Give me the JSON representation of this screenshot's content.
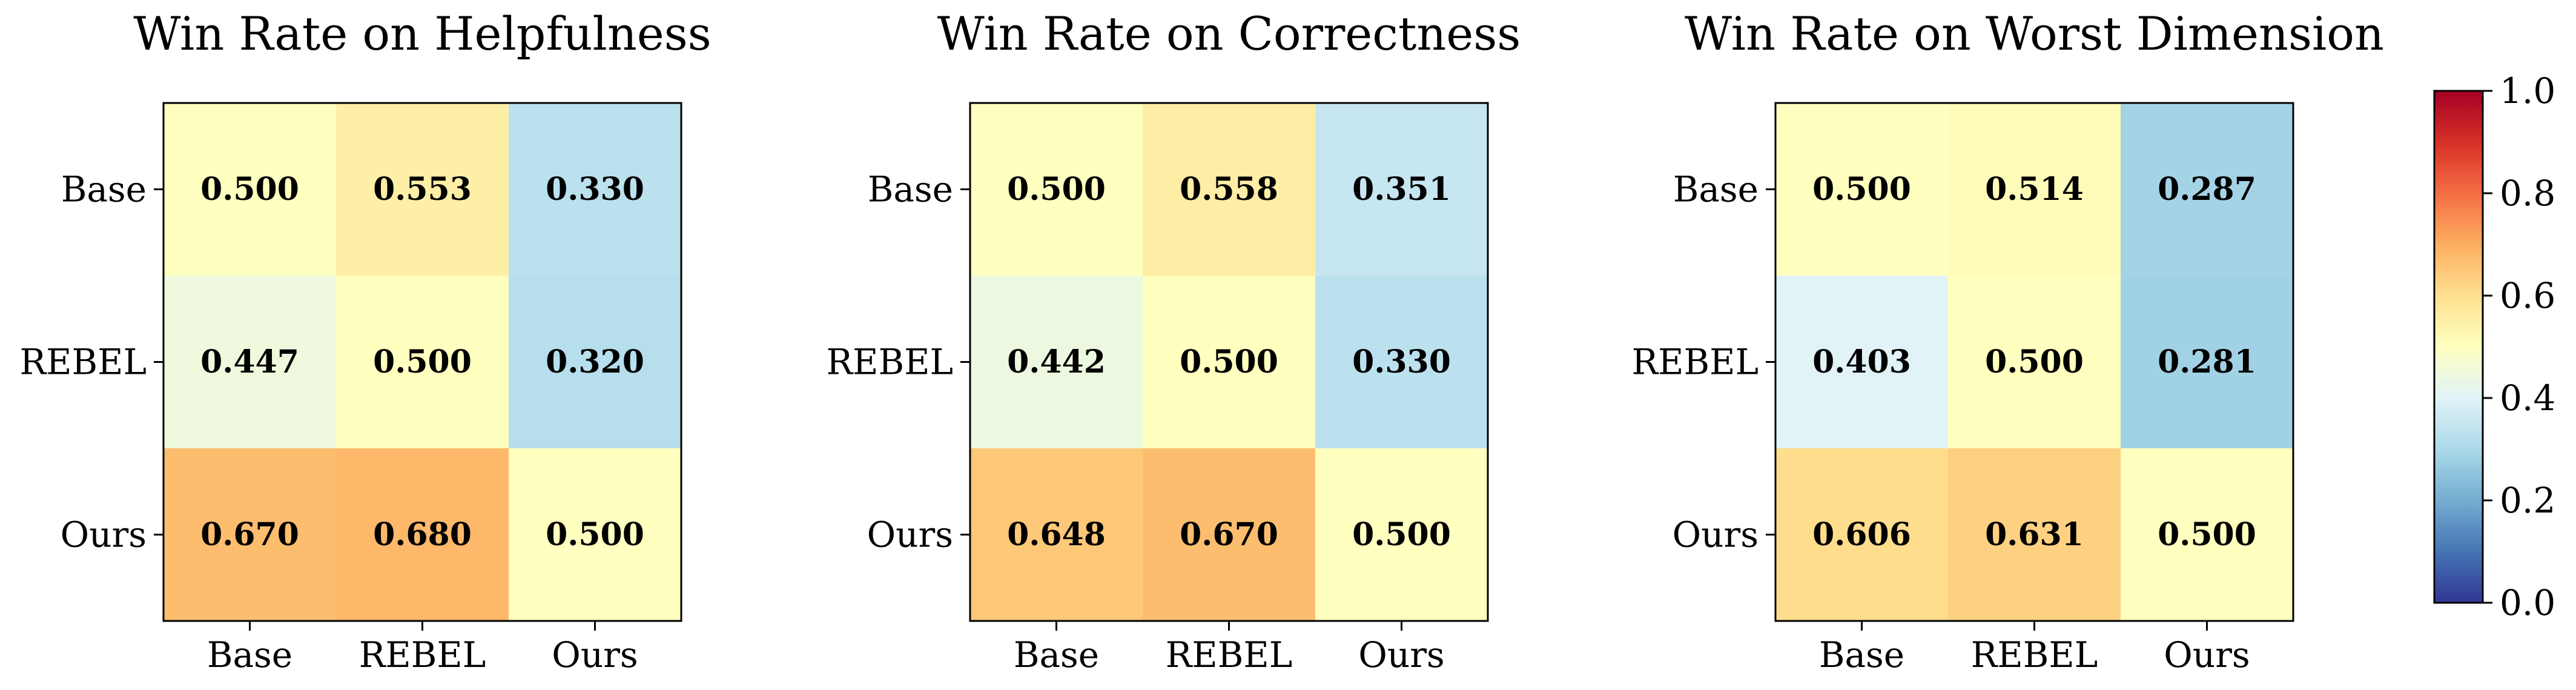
{
  "chart_data": [
    {
      "type": "heatmap",
      "title": "Win Rate on Helpfulness",
      "rows": [
        "Base",
        "REBEL",
        "Ours"
      ],
      "columns": [
        "Base",
        "REBEL",
        "Ours"
      ],
      "values": [
        [
          0.5,
          0.553,
          0.33
        ],
        [
          0.447,
          0.5,
          0.32
        ],
        [
          0.67,
          0.68,
          0.5
        ]
      ],
      "labels": [
        [
          "0.500",
          "0.553",
          "0.330"
        ],
        [
          "0.447",
          "0.500",
          "0.320"
        ],
        [
          "0.670",
          "0.680",
          "0.500"
        ]
      ]
    },
    {
      "type": "heatmap",
      "title": "Win Rate on Correctness",
      "rows": [
        "Base",
        "REBEL",
        "Ours"
      ],
      "columns": [
        "Base",
        "REBEL",
        "Ours"
      ],
      "values": [
        [
          0.5,
          0.558,
          0.351
        ],
        [
          0.442,
          0.5,
          0.33
        ],
        [
          0.648,
          0.67,
          0.5
        ]
      ],
      "labels": [
        [
          "0.500",
          "0.558",
          "0.351"
        ],
        [
          "0.442",
          "0.500",
          "0.330"
        ],
        [
          "0.648",
          "0.670",
          "0.500"
        ]
      ]
    },
    {
      "type": "heatmap",
      "title": "Win Rate on Worst Dimension",
      "rows": [
        "Base",
        "REBEL",
        "Ours"
      ],
      "columns": [
        "Base",
        "REBEL",
        "Ours"
      ],
      "values": [
        [
          0.5,
          0.514,
          0.287
        ],
        [
          0.403,
          0.5,
          0.281
        ],
        [
          0.606,
          0.631,
          0.5
        ]
      ],
      "labels": [
        [
          "0.500",
          "0.514",
          "0.287"
        ],
        [
          "0.403",
          "0.500",
          "0.281"
        ],
        [
          "0.606",
          "0.631",
          "0.500"
        ]
      ]
    }
  ],
  "colorbar": {
    "colormap": "RdYlBu_r",
    "range": [
      0.0,
      1.0
    ],
    "ticks": [
      0.0,
      0.2,
      0.4,
      0.6,
      0.8,
      1.0
    ],
    "tick_labels": [
      "0.0",
      "0.2",
      "0.4",
      "0.6",
      "0.8",
      "1.0"
    ],
    "stops": [
      "#313695",
      "#4575b4",
      "#74add1",
      "#abd9e9",
      "#e0f3f8",
      "#ffffbf",
      "#fee090",
      "#fdae61",
      "#f46d43",
      "#d73027",
      "#a50026"
    ]
  }
}
